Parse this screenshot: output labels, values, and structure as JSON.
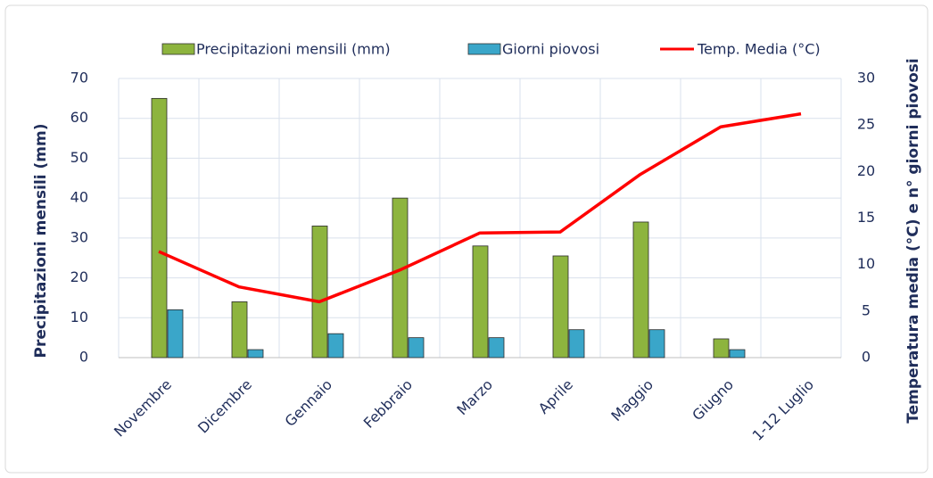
{
  "chart_data": {
    "type": "bar",
    "categories": [
      "Novembre",
      "Dicembre",
      "Gennaio",
      "Febbraio",
      "Marzo",
      "Aprile",
      "Maggio",
      "Giugno",
      "1-12 Luglio"
    ],
    "series": [
      {
        "name": "Precipitazioni mensili (mm)",
        "color": "#8db43e",
        "type": "bar",
        "values": [
          65,
          14,
          33,
          40,
          28,
          25.5,
          34,
          4.7,
          null
        ]
      },
      {
        "name": "Giorni piovosi",
        "color": "#3aa6c9",
        "type": "bar",
        "values": [
          12,
          2,
          6,
          5,
          5,
          7,
          7,
          2,
          null
        ]
      },
      {
        "name": "Temp. Media (°C)",
        "color": "#ff0000",
        "type": "line",
        "axis": "y2",
        "values": [
          11.4,
          7.6,
          6.0,
          9.4,
          13.4,
          13.5,
          19.7,
          24.8,
          26.2
        ]
      }
    ],
    "ylabel": "Precipitazioni mensili (mm)",
    "y2label": "Temperatura media (°C) e n° giorni piovosi",
    "ylim": [
      0,
      70
    ],
    "yticks": [
      0,
      10,
      20,
      30,
      40,
      50,
      60,
      70
    ],
    "y2lim": [
      0,
      30
    ],
    "y2ticks": [
      0,
      5,
      10,
      15,
      20,
      25,
      30
    ],
    "grid": true,
    "legend": "top"
  }
}
